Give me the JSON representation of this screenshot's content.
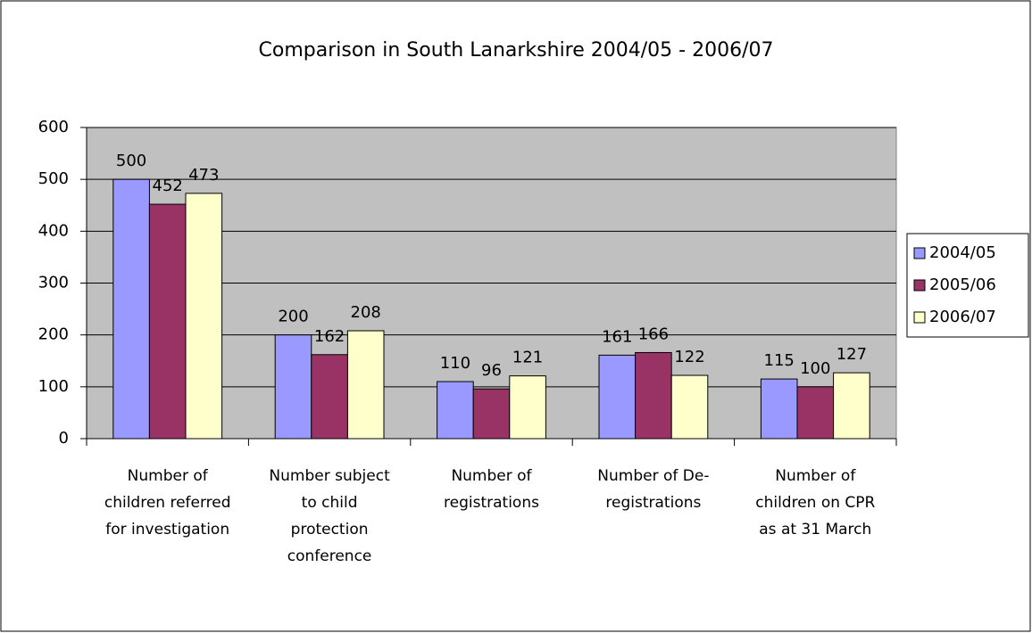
{
  "chart_data": {
    "type": "bar",
    "title": "Comparison in South Lanarkshire 2004/05 - 2006/07",
    "categories": [
      "Number of children referred for investigation",
      "Number subject to child protection conference",
      "Number of registrations",
      "Number of De-registrations",
      "Number of children on CPR as at 31 March"
    ],
    "series": [
      {
        "name": "2004/05",
        "color": "#9999ff",
        "values": [
          500,
          200,
          110,
          161,
          115
        ]
      },
      {
        "name": "2005/06",
        "color": "#993366",
        "values": [
          452,
          162,
          96,
          166,
          100
        ]
      },
      {
        "name": "2006/07",
        "color": "#ffffcc",
        "values": [
          473,
          208,
          121,
          122,
          127
        ]
      }
    ],
    "ylim": [
      0,
      600
    ],
    "yticks": [
      0,
      100,
      200,
      300,
      400,
      500,
      600
    ],
    "grid": true,
    "legend": "right",
    "plot_background": "#c0c0c0"
  }
}
